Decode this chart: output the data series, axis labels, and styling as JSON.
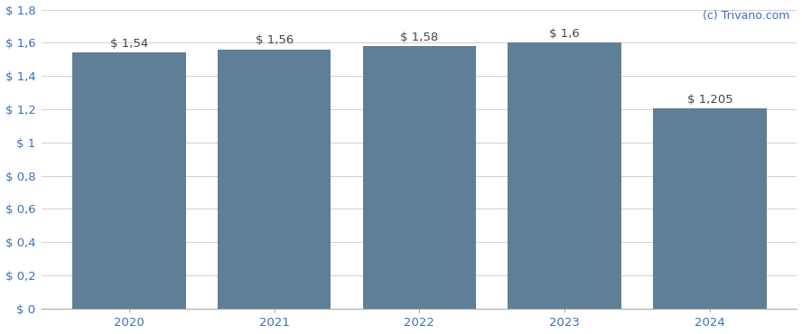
{
  "categories": [
    "2020",
    "2021",
    "2022",
    "2023",
    "2024"
  ],
  "values": [
    1.54,
    1.56,
    1.58,
    1.6,
    1.205
  ],
  "bar_labels": [
    "$ 1,54",
    "$ 1,56",
    "$ 1,58",
    "$ 1,6",
    "$ 1,205"
  ],
  "bar_color": "#5f7f96",
  "background_color": "#ffffff",
  "ylim": [
    0,
    1.8
  ],
  "yticks": [
    0,
    0.2,
    0.4,
    0.6,
    0.8,
    1.0,
    1.2,
    1.4,
    1.6,
    1.8
  ],
  "ytick_labels": [
    "$ 0",
    "$ 0,2",
    "$ 0,4",
    "$ 0,6",
    "$ 0,8",
    "$ 1",
    "$ 1,2",
    "$ 1,4",
    "$ 1,6",
    "$ 1,8"
  ],
  "watermark": "(c) Trivano.com",
  "watermark_color": "#3a6fbd",
  "grid_color": "#d0d0d0",
  "tick_color": "#444444",
  "label_color": "#3a6fbd",
  "bar_label_fontsize": 9.5,
  "axis_label_fontsize": 9.5,
  "watermark_fontsize": 9,
  "bar_width": 0.78
}
